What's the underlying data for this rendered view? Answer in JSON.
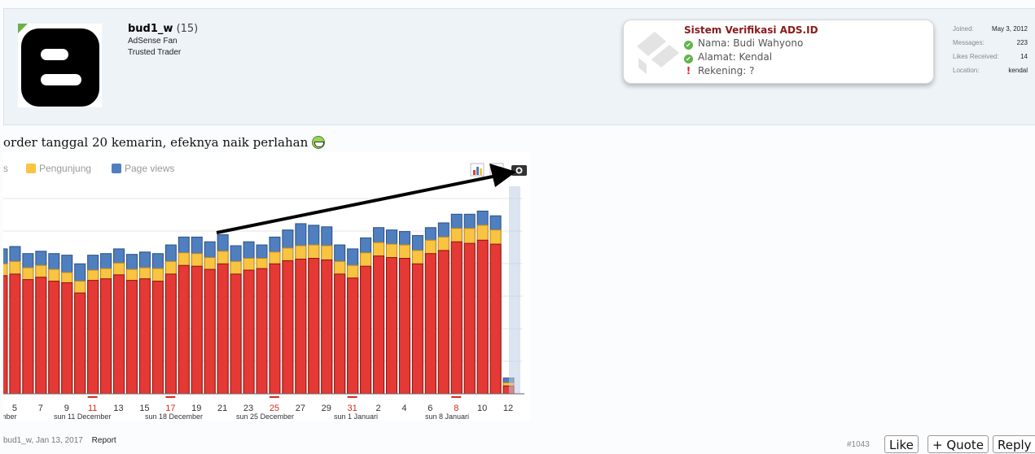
{
  "user": {
    "name": "bud1_w",
    "count": "(15)",
    "title1": "AdSense Fan",
    "title2": "Trusted Trader"
  },
  "verification": {
    "title": "Sistem Verifikasi ADS.ID",
    "rows": [
      {
        "status": "ok",
        "text": "Nama: Budi Wahyono"
      },
      {
        "status": "ok",
        "text": "Alamat: Kendal"
      },
      {
        "status": "missing",
        "text": "Rekening: ?"
      }
    ]
  },
  "stats": [
    {
      "label": "Joined:",
      "value": "May 3, 2012"
    },
    {
      "label": "Messages:",
      "value": "223"
    },
    {
      "label": "Likes Received:",
      "value": "14"
    },
    {
      "label": "Location:",
      "value": "kendal"
    }
  ],
  "message": "order tanggal 20 kemarin, efeknya naik perlahan",
  "chart_data": {
    "type": "bar",
    "legend": [
      {
        "name": "rs",
        "color": "#e53935"
      },
      {
        "name": "Pengunjung",
        "color": "#f9c441"
      },
      {
        "name": "Page views",
        "color": "#4f7fbf"
      }
    ],
    "x_ticks": [
      "5",
      "7",
      "9",
      "11",
      "13",
      "15",
      "17",
      "19",
      "21",
      "23",
      "25",
      "27",
      "29",
      "31",
      "2",
      "4",
      "6",
      "8",
      "10",
      "12"
    ],
    "red_ticks": [
      "11",
      "17",
      "25",
      "31",
      "8"
    ],
    "week_labels": [
      "mber",
      "sun 11 December",
      "sun 18 December",
      "sun 25 December",
      "sun 1 Januari",
      "sun 8 Januari"
    ],
    "series": [
      {
        "name": "rs",
        "values": [
          150,
          152,
          145,
          148,
          143,
          141,
          128,
          144,
          146,
          151,
          144,
          146,
          143,
          152,
          163,
          162,
          158,
          165,
          152,
          157,
          159,
          165,
          169,
          171,
          172,
          170,
          152,
          147,
          162,
          175,
          173,
          172,
          165,
          178,
          182,
          193,
          191,
          195,
          190,
          10
        ]
      },
      {
        "name": "Pengunjung",
        "values": [
          165,
          168,
          160,
          163,
          158,
          154,
          143,
          157,
          159,
          166,
          158,
          160,
          159,
          168,
          179,
          178,
          173,
          181,
          168,
          172,
          172,
          180,
          185,
          188,
          189,
          188,
          168,
          163,
          179,
          192,
          190,
          189,
          182,
          195,
          199,
          210,
          210,
          214,
          208,
          14
        ]
      },
      {
        "name": "Page views",
        "values": [
          184,
          187,
          178,
          181,
          178,
          176,
          165,
          176,
          178,
          184,
          177,
          180,
          178,
          189,
          199,
          199,
          193,
          202,
          188,
          193,
          189,
          199,
          208,
          216,
          214,
          212,
          189,
          184,
          198,
          211,
          208,
          206,
          201,
          211,
          217,
          228,
          228,
          232,
          226,
          20
        ]
      }
    ],
    "ylim": [
      0,
      250
    ]
  },
  "footer": {
    "author_date": "bud1_w, Jan 13, 2017",
    "report": "Report",
    "post_number": "#1043",
    "like": "Like",
    "quote": "+ Quote",
    "reply": "Reply"
  }
}
